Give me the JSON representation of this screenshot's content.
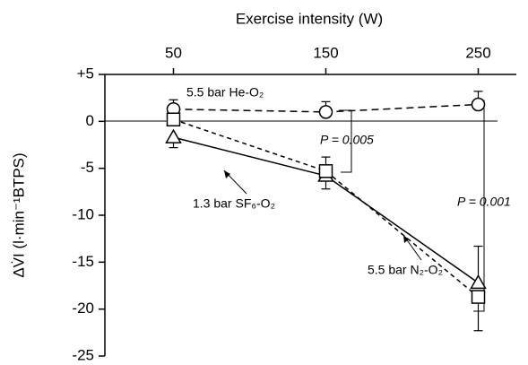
{
  "chart_data": {
    "type": "line",
    "title": "Exercise intensity (W)",
    "y_label": "ΔV̇I (l·min⁻¹BTPS)",
    "x": [
      50,
      150,
      250
    ],
    "xlim": [
      5,
      275
    ],
    "xticks": [
      50,
      150,
      250
    ],
    "ylim": [
      -25,
      5
    ],
    "yticks": [
      {
        "value": 5,
        "label": "+5"
      },
      0,
      -5,
      -10,
      -15,
      -20,
      -25
    ],
    "series": [
      {
        "name": "5.5 bar He-O₂",
        "color": "#000000",
        "marker": "circle",
        "dash": "8 5",
        "values": [
          1.3,
          1.0,
          1.8
        ],
        "errors": [
          1.0,
          1.1,
          1.4
        ],
        "error_dir": [
          "up",
          "up",
          "up"
        ]
      },
      {
        "name": "1.3 bar SF₆-O₂",
        "color": "#000000",
        "marker": "triangle",
        "dash": "none",
        "values": [
          -1.7,
          -5.8,
          -17.2
        ],
        "errors": [
          1.1,
          1.4,
          3.9
        ],
        "error_dir": [
          "down",
          "down",
          "up"
        ]
      },
      {
        "name": "5.5 bar N₂-O₂",
        "color": "#000000",
        "marker": "square",
        "dash": "5 4",
        "values": [
          0.2,
          -5.3,
          -18.7
        ],
        "errors": [
          0.9,
          1.5,
          3.6
        ],
        "error_dir": [
          "up",
          "up",
          "down"
        ]
      }
    ],
    "annotations": [
      "P = 0.005",
      "P = 0.001"
    ]
  }
}
